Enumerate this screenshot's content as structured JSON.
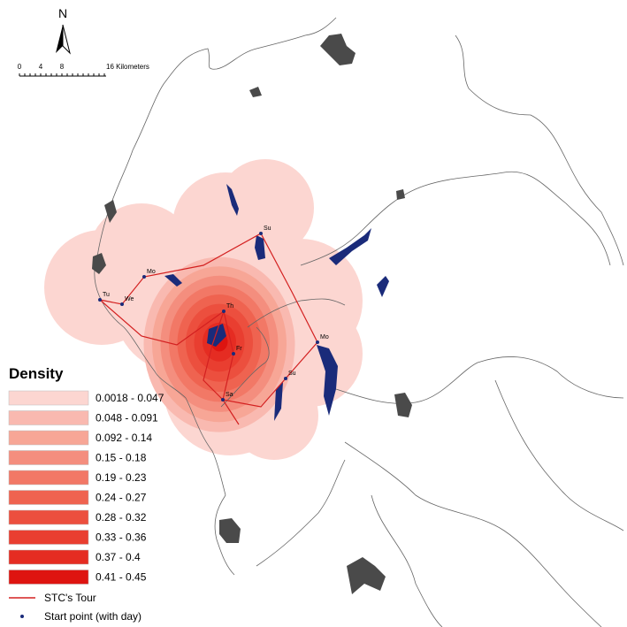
{
  "map": {
    "north_label": "N",
    "scale_bar": {
      "labels": [
        "0",
        "4",
        "8",
        "16 Kilometers"
      ]
    },
    "legend": {
      "title": "Density",
      "classes": [
        {
          "label": "0.0018 - 0.047",
          "color": "#fcd6d1"
        },
        {
          "label": "0.048 - 0.091",
          "color": "#f9b9b0"
        },
        {
          "label": "0.092 - 0.14",
          "color": "#f7a696"
        },
        {
          "label": "0.15 - 0.18",
          "color": "#f48e7e"
        },
        {
          "label": "0.19 - 0.23",
          "color": "#f27866"
        },
        {
          "label": "0.24 - 0.27",
          "color": "#ef6350"
        },
        {
          "label": "0.28 - 0.32",
          "color": "#ec4f3e"
        },
        {
          "label": "0.33 - 0.36",
          "color": "#e93e30"
        },
        {
          "label": "0.37 - 0.4",
          "color": "#e52c22"
        },
        {
          "label": "0.41 - 0.45",
          "color": "#de1410"
        }
      ],
      "tour_label": "STC's Tour",
      "point_label": "Start point (with day)"
    },
    "points": [
      {
        "label": "Su"
      },
      {
        "label": "Mo"
      },
      {
        "label": "Tu"
      },
      {
        "label": "We"
      },
      {
        "label": "Th"
      },
      {
        "label": "Fr"
      },
      {
        "label": "Sa"
      },
      {
        "label": "Su"
      },
      {
        "label": "Mo"
      }
    ]
  }
}
